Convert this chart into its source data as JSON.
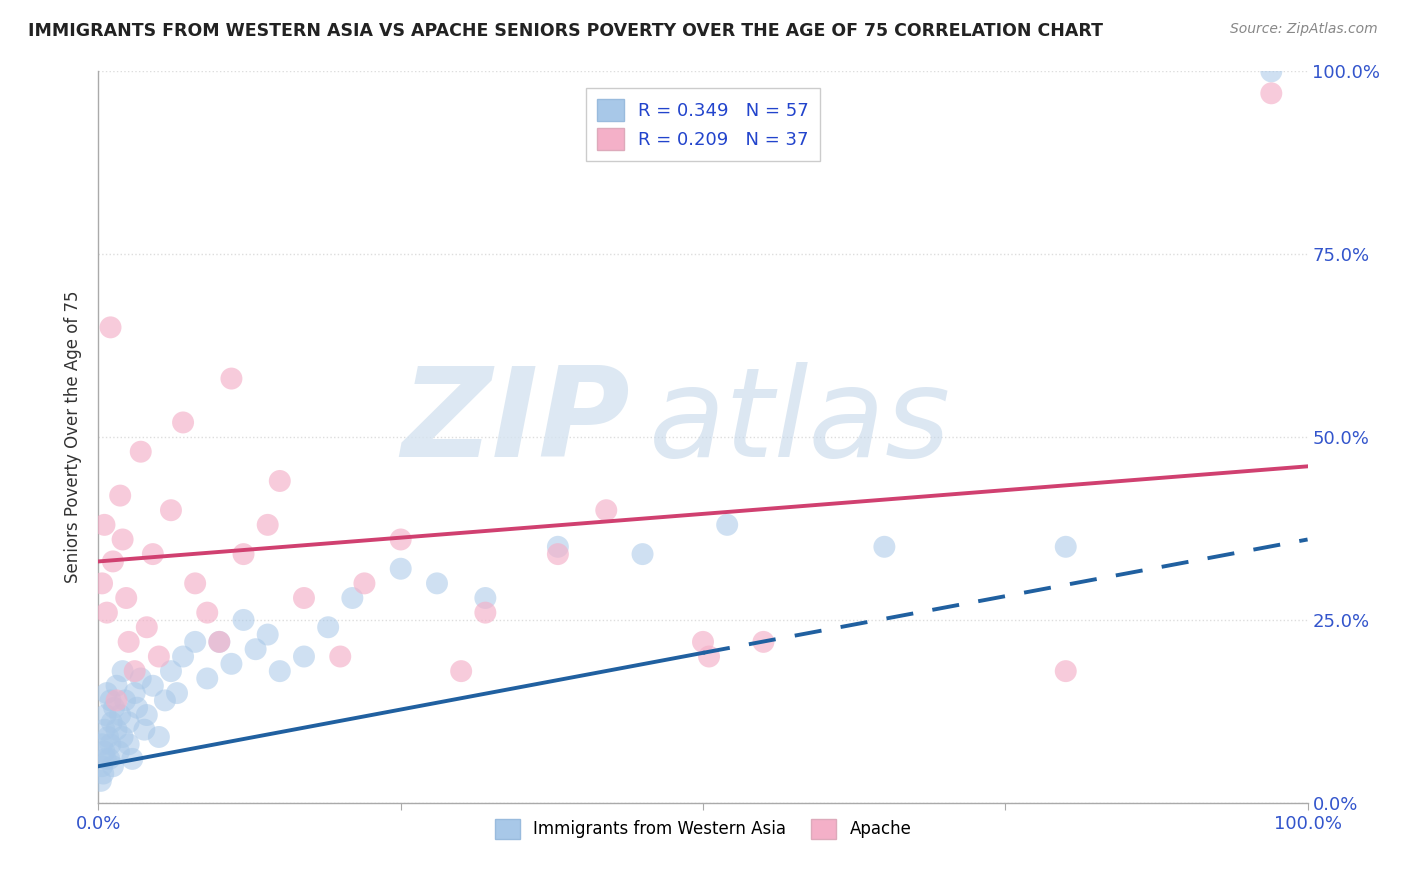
{
  "title": "IMMIGRANTS FROM WESTERN ASIA VS APACHE SENIORS POVERTY OVER THE AGE OF 75 CORRELATION CHART",
  "source": "Source: ZipAtlas.com",
  "ylabel": "Seniors Poverty Over the Age of 75",
  "legend_label_blue": "Immigrants from Western Asia",
  "legend_label_pink": "Apache",
  "r_blue": 0.349,
  "n_blue": 57,
  "r_pink": 0.209,
  "n_pink": 37,
  "xlim": [
    0,
    100
  ],
  "ylim": [
    0,
    100
  ],
  "xticks": [
    0,
    25,
    50,
    75,
    100
  ],
  "yticks": [
    0,
    25,
    50,
    75,
    100
  ],
  "xtick_labels": [
    "0.0%",
    "",
    "",
    "",
    "100.0%"
  ],
  "ytick_labels_right": [
    "0.0%",
    "25.0%",
    "50.0%",
    "75.0%",
    "100.0%"
  ],
  "blue_color": "#a8c8e8",
  "pink_color": "#f4b0c8",
  "blue_line_color": "#2060a0",
  "pink_line_color": "#d04070",
  "blue_line_x0": 0,
  "blue_line_y0": 5,
  "blue_line_x1": 100,
  "blue_line_y1": 36,
  "blue_solid_end_x": 50,
  "pink_line_x0": 0,
  "pink_line_y0": 33,
  "pink_line_x1": 100,
  "pink_line_y1": 46,
  "background_color": "#ffffff",
  "grid_color": "#dddddd",
  "tick_color": "#3355cc",
  "blue_scatter_x": [
    0.2,
    0.3,
    0.3,
    0.4,
    0.5,
    0.5,
    0.6,
    0.6,
    0.7,
    0.8,
    0.9,
    1.0,
    1.0,
    1.1,
    1.2,
    1.3,
    1.5,
    1.5,
    1.7,
    1.8,
    2.0,
    2.0,
    2.2,
    2.5,
    2.5,
    2.8,
    3.0,
    3.2,
    3.5,
    3.8,
    4.0,
    4.5,
    5.0,
    5.5,
    6.0,
    6.5,
    7.0,
    8.0,
    9.0,
    10.0,
    11.0,
    12.0,
    13.0,
    14.0,
    15.0,
    17.0,
    19.0,
    21.0,
    25.0,
    28.0,
    32.0,
    38.0,
    45.0,
    52.0,
    65.0,
    80.0,
    97.0
  ],
  "blue_scatter_y": [
    3,
    5,
    8,
    4,
    10,
    7,
    12,
    6,
    15,
    9,
    6,
    8,
    14,
    11,
    5,
    13,
    10,
    16,
    7,
    12,
    18,
    9,
    14,
    11,
    8,
    6,
    15,
    13,
    17,
    10,
    12,
    16,
    9,
    14,
    18,
    15,
    20,
    22,
    17,
    22,
    19,
    25,
    21,
    23,
    18,
    20,
    24,
    28,
    32,
    30,
    28,
    35,
    34,
    38,
    35,
    35,
    100
  ],
  "pink_scatter_x": [
    0.3,
    0.5,
    0.7,
    1.0,
    1.2,
    1.5,
    1.8,
    2.0,
    2.3,
    2.5,
    3.0,
    3.5,
    4.0,
    4.5,
    5.0,
    6.0,
    7.0,
    8.0,
    9.0,
    10.0,
    11.0,
    12.0,
    14.0,
    15.0,
    17.0,
    20.0,
    22.0,
    25.0,
    30.0,
    32.0,
    38.0,
    42.0,
    50.0,
    50.5,
    55.0,
    80.0,
    97.0
  ],
  "pink_scatter_y": [
    30,
    38,
    26,
    65,
    33,
    14,
    42,
    36,
    28,
    22,
    18,
    48,
    24,
    34,
    20,
    40,
    52,
    30,
    26,
    22,
    58,
    34,
    38,
    44,
    28,
    20,
    30,
    36,
    18,
    26,
    34,
    40,
    22,
    20,
    22,
    18,
    97
  ]
}
